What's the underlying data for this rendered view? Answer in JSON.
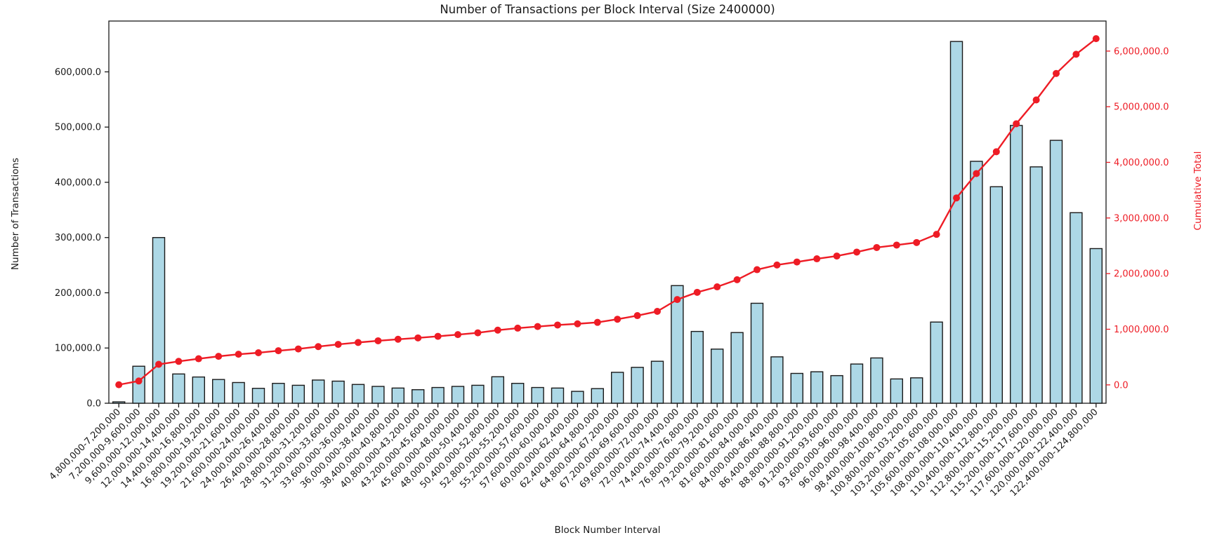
{
  "figure": {
    "background": "#ffffff"
  },
  "chart_data": {
    "type": "bar",
    "title": "Number of Transactions per Block Interval (Size 2400000)",
    "xlabel": "Block Number Interval",
    "ylabel": "Number of Transactions",
    "ylabel_right": "Cumulative Total",
    "grid": false,
    "legend": "none",
    "colors": {
      "bar_fill": "#ADD8E6",
      "bar_edge": "#1a1a1a",
      "line": "#ee1c25",
      "axis": "#1a1a1a"
    },
    "categories": [
      "4,800,000-7,200,000",
      "7,200,000-9,600,000",
      "9,600,000-12,000,000",
      "12,000,000-14,400,000",
      "14,400,000-16,800,000",
      "16,800,000-19,200,000",
      "19,200,000-21,600,000",
      "21,600,000-24,000,000",
      "24,000,000-26,400,000",
      "26,400,000-28,800,000",
      "28,800,000-31,200,000",
      "31,200,000-33,600,000",
      "33,600,000-36,000,000",
      "36,000,000-38,400,000",
      "38,400,000-40,800,000",
      "40,800,000-43,200,000",
      "43,200,000-45,600,000",
      "45,600,000-48,000,000",
      "48,000,000-50,400,000",
      "50,400,000-52,800,000",
      "52,800,000-55,200,000",
      "55,200,000-57,600,000",
      "57,600,000-60,000,000",
      "60,000,000-62,400,000",
      "62,400,000-64,800,000",
      "64,800,000-67,200,000",
      "67,200,000-69,600,000",
      "69,600,000-72,000,000",
      "72,000,000-74,400,000",
      "74,400,000-76,800,000",
      "76,800,000-79,200,000",
      "79,200,000-81,600,000",
      "81,600,000-84,000,000",
      "84,000,000-86,400,000",
      "86,400,000-88,800,000",
      "88,800,000-91,200,000",
      "91,200,000-93,600,000",
      "93,600,000-96,000,000",
      "96,000,000-98,400,000",
      "98,400,000-100,800,000",
      "100,800,000-103,200,000",
      "103,200,000-105,600,000",
      "105,600,000-108,000,000",
      "108,000,000-110,400,000",
      "110,400,000-112,800,000",
      "112,800,000-115,200,000",
      "115,200,000-117,600,000",
      "117,600,000-120,000,000",
      "120,000,000-122,400,000",
      "122,400,000-124,800,000"
    ],
    "series": [
      {
        "name": "Number of Transactions",
        "type": "bar",
        "axis": "left",
        "color": "#ADD8E6",
        "edge_color": "#1a1a1a",
        "values": [
          2500,
          67000,
          300000,
          53000,
          47500,
          43000,
          37500,
          27000,
          36000,
          32500,
          42000,
          40000,
          34000,
          30500,
          27500,
          24500,
          28500,
          30500,
          32500,
          48000,
          36000,
          28500,
          27500,
          21500,
          26500,
          56000,
          65000,
          76000,
          213000,
          130000,
          98000,
          128000,
          181000,
          84000,
          54000,
          57000,
          50000,
          71000,
          82000,
          44000,
          46000,
          147000,
          655000,
          438000,
          392000,
          503000,
          428000,
          476000,
          345000,
          280000
        ]
      },
      {
        "name": "Cumulative Total",
        "type": "line",
        "axis": "right",
        "color": "#ee1c25",
        "marker": "circle",
        "values": [
          2500,
          69500,
          369500,
          422500,
          470000,
          513000,
          550500,
          577500,
          613500,
          646000,
          688000,
          728000,
          762000,
          792500,
          820000,
          844500,
          873000,
          903500,
          936000,
          984000,
          1020000,
          1048500,
          1076000,
          1097500,
          1124000,
          1180000,
          1245000,
          1321000,
          1534000,
          1664000,
          1762000,
          1890000,
          2071000,
          2155000,
          2209000,
          2266000,
          2316000,
          2387000,
          2469000,
          2513000,
          2559000,
          2706000,
          3361000,
          3799000,
          4191000,
          4694000,
          5122000,
          5598000,
          5943000,
          6223000
        ]
      }
    ],
    "y_axis_left": {
      "tick_values": [
        0,
        100000,
        200000,
        300000,
        400000,
        500000,
        600000
      ],
      "tick_labels": [
        "0.0",
        "100,000.0",
        "200,000.0",
        "300,000.0",
        "400,000.0",
        "500,000.0",
        "600,000.0"
      ],
      "range": [
        0,
        692000
      ],
      "color": "#1a1a1a"
    },
    "y_axis_right": {
      "tick_values": [
        0,
        1000000,
        2000000,
        3000000,
        4000000,
        5000000,
        6000000
      ],
      "tick_labels": [
        "0.0",
        "1,000,000.0",
        "2,000,000.0",
        "3,000,000.0",
        "4,000,000.0",
        "5,000,000.0",
        "6,000,000.0"
      ],
      "range": [
        -330000,
        6540000
      ],
      "color": "#ee1c25"
    }
  }
}
